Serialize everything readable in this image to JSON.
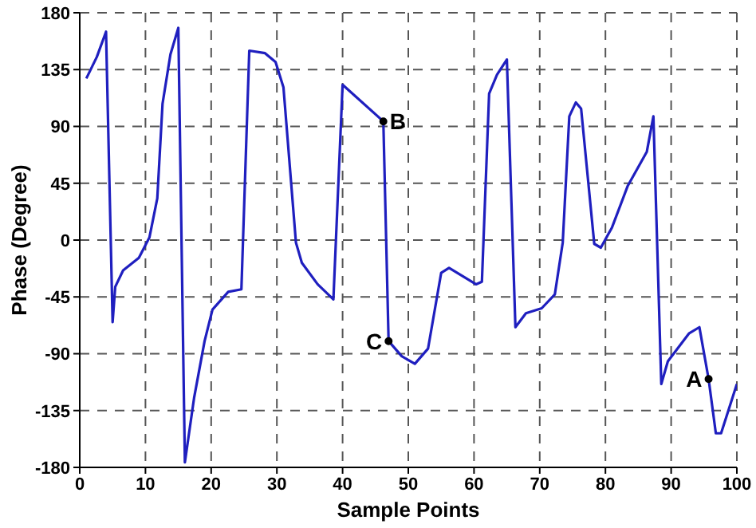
{
  "chart_data": {
    "type": "line",
    "xlabel": "Sample Points",
    "ylabel": "Phase (Degree)",
    "x": [
      1,
      2.6,
      4,
      5,
      5.4,
      6.6,
      9,
      10.6,
      11.8,
      12.6,
      13.8,
      15,
      16,
      17.4,
      19,
      20.2,
      22.6,
      24.6,
      25.8,
      28.2,
      29.8,
      31,
      32.9,
      33.8,
      36.2,
      38.6,
      40,
      46.2,
      47,
      49,
      51,
      53,
      55,
      56.2,
      60.3,
      61.2,
      62.3,
      63.5,
      65,
      66.3,
      67.9,
      70.3,
      72.3,
      73.5,
      74.5,
      75.5,
      76.3,
      78.3,
      79.3,
      81,
      83.4,
      86.3,
      87.3,
      88.5,
      89.5,
      92.7,
      94.3,
      95.7,
      96.8,
      97.6,
      100
    ],
    "series": [
      {
        "color": "#1f1fbf",
        "values": [
          128,
          145,
          165,
          -65,
          -37,
          -24,
          -14,
          2,
          33,
          108,
          147,
          168,
          -176,
          -125,
          -80,
          -55,
          -41,
          -39,
          150,
          148,
          141,
          121,
          -2,
          -18,
          -35,
          -47,
          123,
          94,
          -80,
          -92,
          -98,
          -86,
          -26,
          -22,
          -35,
          -33,
          116,
          131,
          143,
          -69,
          -58,
          -54,
          -43,
          -2,
          98,
          109,
          104,
          -3,
          -6,
          10,
          43,
          70,
          98,
          -114,
          -96,
          -74,
          -69,
          -110,
          -153,
          -153,
          -114
        ]
      }
    ],
    "xlim": [
      0,
      100
    ],
    "xticks": [
      0,
      10,
      20,
      30,
      40,
      50,
      60,
      70,
      80,
      90,
      100
    ],
    "ylim": [
      -180,
      180
    ],
    "yticks": [
      -180,
      -135,
      -90,
      -45,
      0,
      45,
      90,
      135,
      180
    ],
    "grid": true,
    "line_style": "solid",
    "marker": "none",
    "annotations": [
      {
        "text": "A",
        "x": 95.7,
        "y": -110
      },
      {
        "text": "B",
        "x": 46.2,
        "y": 94
      },
      {
        "text": "C",
        "x": 47,
        "y": -80
      }
    ]
  }
}
